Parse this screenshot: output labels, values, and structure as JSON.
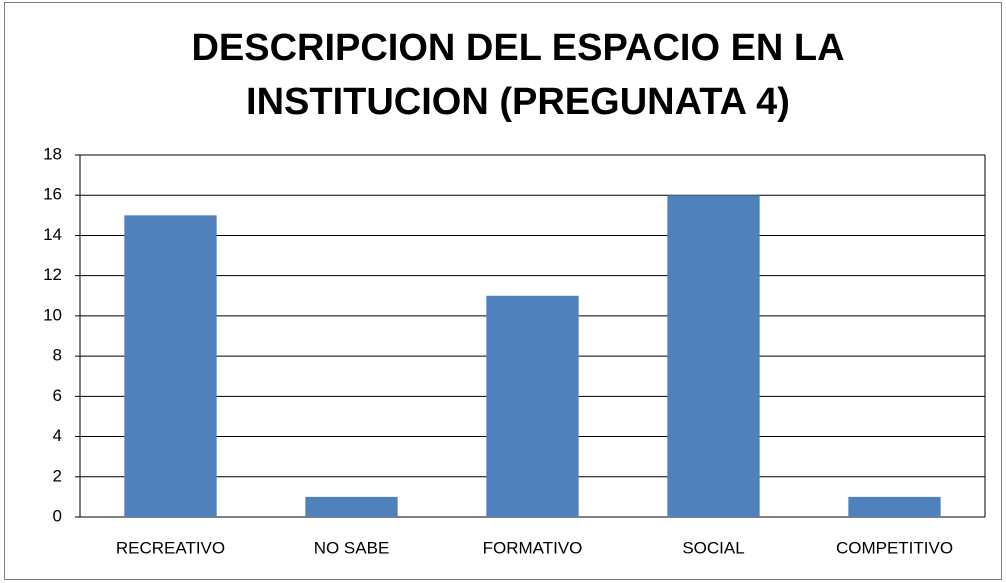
{
  "chart_data": {
    "type": "bar",
    "title": [
      "DESCRIPCION DEL ESPACIO EN LA",
      "INSTITUCION (PREGUNATA 4)"
    ],
    "categories": [
      "RECREATIVO",
      "NO SABE",
      "FORMATIVO",
      "SOCIAL",
      "COMPETITIVO"
    ],
    "values": [
      15,
      1,
      11,
      16,
      1
    ],
    "color": "#4f81bd",
    "ylim": [
      0,
      18
    ],
    "yticks": [
      0,
      2,
      4,
      6,
      8,
      10,
      12,
      14,
      16,
      18
    ],
    "grid": true
  }
}
